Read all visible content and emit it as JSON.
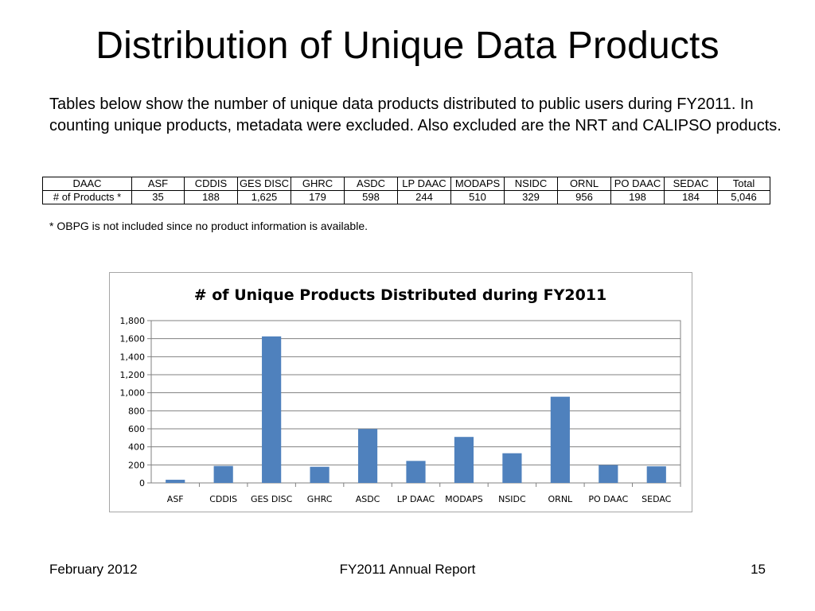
{
  "slide": {
    "title": "Distribution of Unique Data Products",
    "intro": "Tables below show the number of unique data products distributed to public users during FY2011. In counting unique products, metadata were excluded. Also excluded are the NRT and CALIPSO products.",
    "footnote": "* OBPG is not included since no product information is available."
  },
  "table": {
    "header": [
      "DAAC",
      "ASF",
      "CDDIS",
      "GES DISC",
      "GHRC",
      "ASDC",
      "LP DAAC",
      "MODAPS",
      "NSIDC",
      "ORNL",
      "PO DAAC",
      "SEDAC",
      "Total"
    ],
    "row": [
      "# of Products *",
      "35",
      "188",
      "1,625",
      "179",
      "598",
      "244",
      "510",
      "329",
      "956",
      "198",
      "184",
      "5,046"
    ]
  },
  "chart_data": {
    "type": "bar",
    "title": "# of Unique Products Distributed during FY2011",
    "categories": [
      "ASF",
      "CDDIS",
      "GES DISC",
      "GHRC",
      "ASDC",
      "LP DAAC",
      "MODAPS",
      "NSIDC",
      "ORNL",
      "PO DAAC",
      "SEDAC"
    ],
    "values": [
      35,
      188,
      1625,
      179,
      598,
      244,
      510,
      329,
      956,
      198,
      184
    ],
    "ylim": [
      0,
      1800
    ],
    "yticks": [
      0,
      200,
      400,
      600,
      800,
      1000,
      1200,
      1400,
      1600,
      1800
    ],
    "ytick_labels": [
      "0",
      "200",
      "400",
      "600",
      "800",
      "1,000",
      "1,200",
      "1,400",
      "1,600",
      "1,800"
    ],
    "grid": true,
    "bar_color": "#4f81bd",
    "xlabel": "",
    "ylabel": ""
  },
  "footer": {
    "left": "February 2012",
    "center": "FY2011 Annual Report",
    "right": "15"
  }
}
